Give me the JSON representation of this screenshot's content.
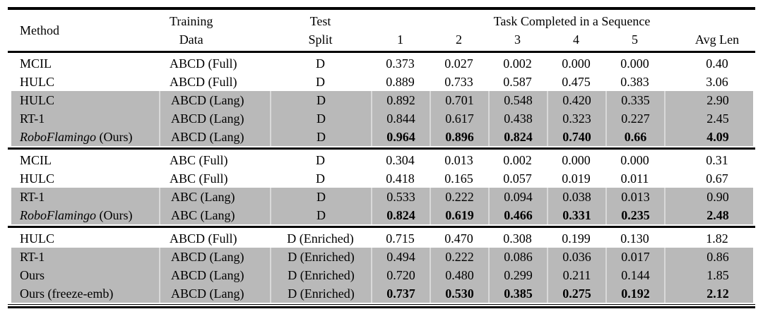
{
  "colors": {
    "background": "#ffffff",
    "rule": "#000000",
    "row_shade": "#b9b9b9",
    "seam": "#d9d9d9"
  },
  "table": {
    "header": {
      "method": "Method",
      "training_line1": "Training",
      "training_line2": "Data",
      "test_line1": "Test",
      "test_line2": "Split",
      "task_group": "Task Completed in a Sequence",
      "task_cols": [
        "1",
        "2",
        "3",
        "4",
        "5"
      ],
      "avg": "Avg Len"
    },
    "blocks": [
      {
        "rows": [
          {
            "method_em": "",
            "method_text": "MCIL",
            "training": "ABCD (Full)",
            "split": "D",
            "values": [
              "0.373",
              "0.027",
              "0.002",
              "0.000",
              "0.000"
            ],
            "avg": "0.40",
            "shaded": false,
            "bold": false
          },
          {
            "method_em": "",
            "method_text": "HULC",
            "training": "ABCD (Full)",
            "split": "D",
            "values": [
              "0.889",
              "0.733",
              "0.587",
              "0.475",
              "0.383"
            ],
            "avg": "3.06",
            "shaded": false,
            "bold": false
          },
          {
            "method_em": "",
            "method_text": "HULC",
            "training": "ABCD (Lang)",
            "split": "D",
            "values": [
              "0.892",
              "0.701",
              "0.548",
              "0.420",
              "0.335"
            ],
            "avg": "2.90",
            "shaded": true,
            "bold": false
          },
          {
            "method_em": "",
            "method_text": "RT-1",
            "training": "ABCD (Lang)",
            "split": "D",
            "values": [
              "0.844",
              "0.617",
              "0.438",
              "0.323",
              "0.227"
            ],
            "avg": "2.45",
            "shaded": true,
            "bold": false
          },
          {
            "method_em": "RoboFlamingo",
            "method_text": " (Ours)",
            "training": "ABCD (Lang)",
            "split": "D",
            "values": [
              "0.964",
              "0.896",
              "0.824",
              "0.740",
              "0.66"
            ],
            "avg": "4.09",
            "shaded": true,
            "bold": true
          }
        ]
      },
      {
        "rows": [
          {
            "method_em": "",
            "method_text": "MCIL",
            "training": "ABC (Full)",
            "split": "D",
            "values": [
              "0.304",
              "0.013",
              "0.002",
              "0.000",
              "0.000"
            ],
            "avg": "0.31",
            "shaded": false,
            "bold": false
          },
          {
            "method_em": "",
            "method_text": "HULC",
            "training": "ABC (Full)",
            "split": "D",
            "values": [
              "0.418",
              "0.165",
              "0.057",
              "0.019",
              "0.011"
            ],
            "avg": "0.67",
            "shaded": false,
            "bold": false
          },
          {
            "method_em": "",
            "method_text": "RT-1",
            "training": "ABC (Lang)",
            "split": "D",
            "values": [
              "0.533",
              "0.222",
              "0.094",
              "0.038",
              "0.013"
            ],
            "avg": "0.90",
            "shaded": true,
            "bold": false
          },
          {
            "method_em": "RoboFlamingo",
            "method_text": " (Ours)",
            "training": "ABC (Lang)",
            "split": "D",
            "values": [
              "0.824",
              "0.619",
              "0.466",
              "0.331",
              "0.235"
            ],
            "avg": "2.48",
            "shaded": true,
            "bold": true
          }
        ]
      },
      {
        "rows": [
          {
            "method_em": "",
            "method_text": "HULC",
            "training": "ABCD (Full)",
            "split": "D (Enriched)",
            "values": [
              "0.715",
              "0.470",
              "0.308",
              "0.199",
              "0.130"
            ],
            "avg": "1.82",
            "shaded": false,
            "bold": false
          },
          {
            "method_em": "",
            "method_text": "RT-1",
            "training": "ABCD (Lang)",
            "split": "D (Enriched)",
            "values": [
              "0.494",
              "0.222",
              "0.086",
              "0.036",
              "0.017"
            ],
            "avg": "0.86",
            "shaded": true,
            "bold": false
          },
          {
            "method_em": "",
            "method_text": "Ours",
            "training": "ABCD (Lang)",
            "split": "D (Enriched)",
            "values": [
              "0.720",
              "0.480",
              "0.299",
              "0.211",
              "0.144"
            ],
            "avg": "1.85",
            "shaded": true,
            "bold": false
          },
          {
            "method_em": "",
            "method_text": "Ours (freeze-emb)",
            "training": "ABCD (Lang)",
            "split": "D (Enriched)",
            "values": [
              "0.737",
              "0.530",
              "0.385",
              "0.275",
              "0.192"
            ],
            "avg": "2.12",
            "shaded": true,
            "bold": true
          }
        ]
      }
    ]
  }
}
